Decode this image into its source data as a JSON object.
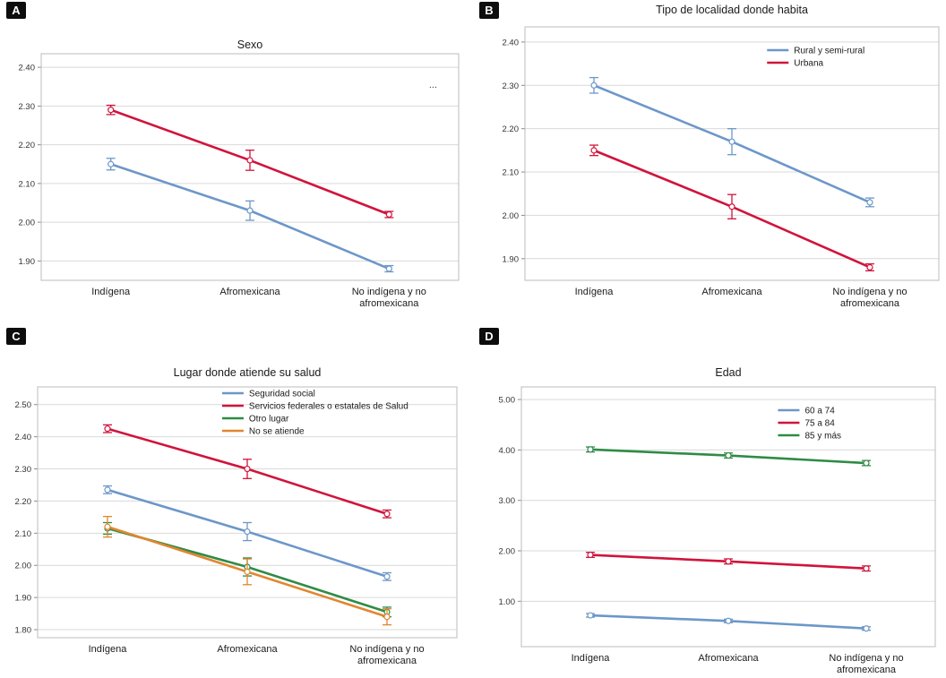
{
  "figure": {
    "panels": [
      {
        "label": "A"
      },
      {
        "label": "B"
      },
      {
        "label": "C"
      },
      {
        "label": "D"
      }
    ]
  },
  "colors": {
    "blue": "#6c97c9",
    "red": "#d0143c",
    "green": "#2f8b46",
    "orange": "#e2862f",
    "grid": "#d9d9d9",
    "frame": "#bcbcbc"
  },
  "chart_data": [
    {
      "panel": "A",
      "type": "line",
      "title": "Sexo",
      "categories": [
        "Indígena",
        "Afromexicana",
        "No indígena y no\nafromexicana"
      ],
      "yticks": [
        1.9,
        2.0,
        2.1,
        2.2,
        2.3,
        2.4
      ],
      "ylim": [
        1.85,
        2.435
      ],
      "grid": true,
      "legend_pos": "top-right",
      "legend_note": "...",
      "series": [
        {
          "name": "",
          "color": "#6c97c9",
          "values": [
            2.15,
            2.03,
            1.88
          ],
          "errors": [
            0.015,
            0.025,
            0.008
          ]
        },
        {
          "name": "",
          "color": "#d0143c",
          "values": [
            2.29,
            2.16,
            2.02
          ],
          "errors": [
            0.012,
            0.026,
            0.008
          ]
        }
      ]
    },
    {
      "panel": "B",
      "type": "line",
      "title": "Tipo de localidad donde habita",
      "categories": [
        "Indígena",
        "Afromexicana",
        "No indígena y no\nafromexicana"
      ],
      "yticks": [
        1.9,
        2.0,
        2.1,
        2.2,
        2.3,
        2.4
      ],
      "ylim": [
        1.85,
        2.435
      ],
      "grid": true,
      "legend_pos": "top-right",
      "series": [
        {
          "name": "Rural y semi-rural",
          "color": "#6c97c9",
          "values": [
            2.3,
            2.17,
            2.03
          ],
          "errors": [
            0.018,
            0.03,
            0.01
          ]
        },
        {
          "name": "Urbana",
          "color": "#d0143c",
          "values": [
            2.15,
            2.02,
            1.88
          ],
          "errors": [
            0.012,
            0.028,
            0.008
          ]
        }
      ]
    },
    {
      "panel": "C",
      "type": "line",
      "title": "Lugar donde atiende su salud",
      "categories": [
        "Indígena",
        "Afromexicana",
        "No indígena y no\nafromexicana"
      ],
      "yticks": [
        1.8,
        1.9,
        2.0,
        2.1,
        2.2,
        2.3,
        2.4,
        2.5
      ],
      "ylim": [
        1.775,
        2.555
      ],
      "grid": true,
      "legend_pos": "top-center",
      "series": [
        {
          "name": "Seguridad social",
          "color": "#6c97c9",
          "values": [
            2.235,
            2.105,
            1.965
          ],
          "errors": [
            0.012,
            0.028,
            0.012
          ]
        },
        {
          "name": "Servicios federales o estatales de Salud",
          "color": "#d0143c",
          "values": [
            2.425,
            2.3,
            2.16
          ],
          "errors": [
            0.012,
            0.03,
            0.012
          ]
        },
        {
          "name": "Otro lugar",
          "color": "#2f8b46",
          "values": [
            2.115,
            1.995,
            1.855
          ],
          "errors": [
            0.018,
            0.028,
            0.015
          ]
        },
        {
          "name": "No se atiende",
          "color": "#e2862f",
          "values": [
            2.12,
            1.98,
            1.84
          ],
          "errors": [
            0.032,
            0.04,
            0.025
          ]
        }
      ]
    },
    {
      "panel": "D",
      "type": "line",
      "title": "Edad",
      "categories": [
        "Indígena",
        "Afromexicana",
        "No indígena y no\nafromexicana"
      ],
      "yticks": [
        1.0,
        2.0,
        3.0,
        4.0,
        5.0
      ],
      "ylim": [
        0.1,
        5.25
      ],
      "grid": true,
      "legend_pos": "top-right",
      "series": [
        {
          "name": "60 a 74",
          "color": "#6c97c9",
          "values": [
            0.72,
            0.61,
            0.46
          ],
          "errors": [
            0.035,
            0.035,
            0.035
          ]
        },
        {
          "name": "75 a 84",
          "color": "#d0143c",
          "values": [
            1.92,
            1.79,
            1.65
          ],
          "errors": [
            0.05,
            0.05,
            0.05
          ]
        },
        {
          "name": "85 y más",
          "color": "#2f8b46",
          "values": [
            4.01,
            3.89,
            3.74
          ],
          "errors": [
            0.05,
            0.05,
            0.05
          ]
        }
      ]
    }
  ]
}
